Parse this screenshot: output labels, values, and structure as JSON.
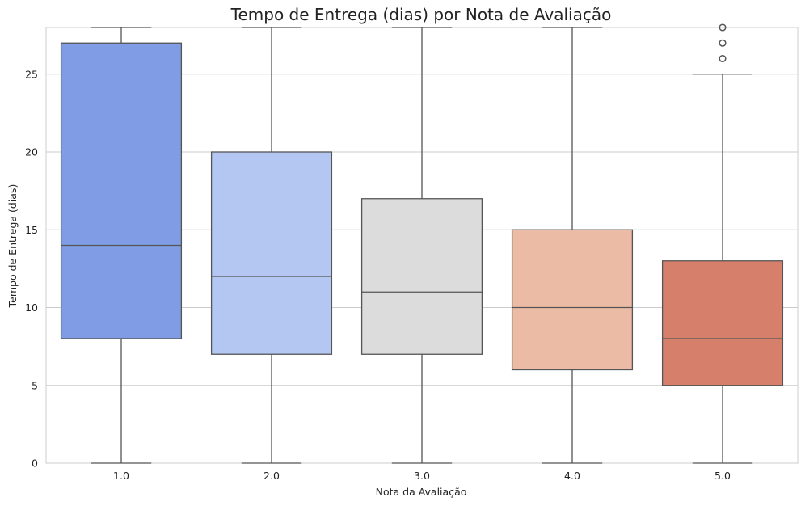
{
  "chart_data": {
    "type": "box",
    "title": "Tempo de Entrega (dias) por Nota de Avaliação",
    "xlabel": "Nota da Avaliação",
    "ylabel": "Tempo de Entrega (dias)",
    "ylim": [
      0,
      28
    ],
    "yticks": [
      "0",
      "5",
      "10",
      "15",
      "20",
      "25"
    ],
    "ytick_values": [
      0,
      5,
      10,
      15,
      20,
      25
    ],
    "grid": true,
    "categories": [
      "1.0",
      "2.0",
      "3.0",
      "4.0",
      "5.0"
    ],
    "boxes": [
      {
        "category": "1.0",
        "whisker_low": 0,
        "q1": 8,
        "median": 14,
        "q3": 27,
        "whisker_high": 28,
        "outliers": [],
        "color": "#7f9ce4"
      },
      {
        "category": "2.0",
        "whisker_low": 0,
        "q1": 7,
        "median": 12,
        "q3": 20,
        "whisker_high": 28,
        "outliers": [],
        "color": "#b4c7f3"
      },
      {
        "category": "3.0",
        "whisker_low": 0,
        "q1": 7,
        "median": 11,
        "q3": 17,
        "whisker_high": 28,
        "outliers": [],
        "color": "#dcdcdc"
      },
      {
        "category": "4.0",
        "whisker_low": 0,
        "q1": 6,
        "median": 10,
        "q3": 15,
        "whisker_high": 28,
        "outliers": [],
        "color": "#ecbba5"
      },
      {
        "category": "5.0",
        "whisker_low": 0,
        "q1": 5,
        "median": 8,
        "q3": 13,
        "whisker_high": 25,
        "outliers": [
          26,
          27,
          28
        ],
        "color": "#d6806b"
      }
    ]
  }
}
